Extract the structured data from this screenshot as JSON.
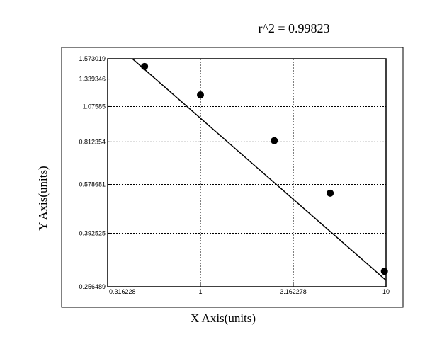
{
  "chart_data": {
    "type": "scatter",
    "title": "r^2  =  0.99823",
    "xlabel": "X Axis(units)",
    "ylabel": "Y Axis(units)",
    "x_scale": "log",
    "y_scale": "log",
    "xlim": [
      0.316228,
      10
    ],
    "ylim": [
      0.256489,
      1.573019
    ],
    "x_ticks": [
      0.316228,
      1,
      3.162278,
      10
    ],
    "x_tick_labels": [
      "0.316228",
      "1",
      "3.162278",
      "10"
    ],
    "y_ticks": [
      0.256489,
      0.392525,
      0.578681,
      0.812354,
      1.07585,
      1.339346,
      1.573019
    ],
    "y_tick_labels": [
      "0.256489",
      "0.392525",
      "0.578681",
      "0.812354",
      "1.07585",
      "1.339346",
      "1.573019"
    ],
    "grid": true,
    "series": [
      {
        "points": [
          {
            "x": 0.5,
            "y": 1.48
          },
          {
            "x": 1.0,
            "y": 1.18
          },
          {
            "x": 2.5,
            "y": 0.82
          },
          {
            "x": 5.0,
            "y": 0.54
          },
          {
            "x": 9.8,
            "y": 0.29
          }
        ]
      }
    ],
    "fit_line": [
      {
        "x": 0.43,
        "y": 1.573019
      },
      {
        "x": 10,
        "y": 0.27
      }
    ]
  }
}
